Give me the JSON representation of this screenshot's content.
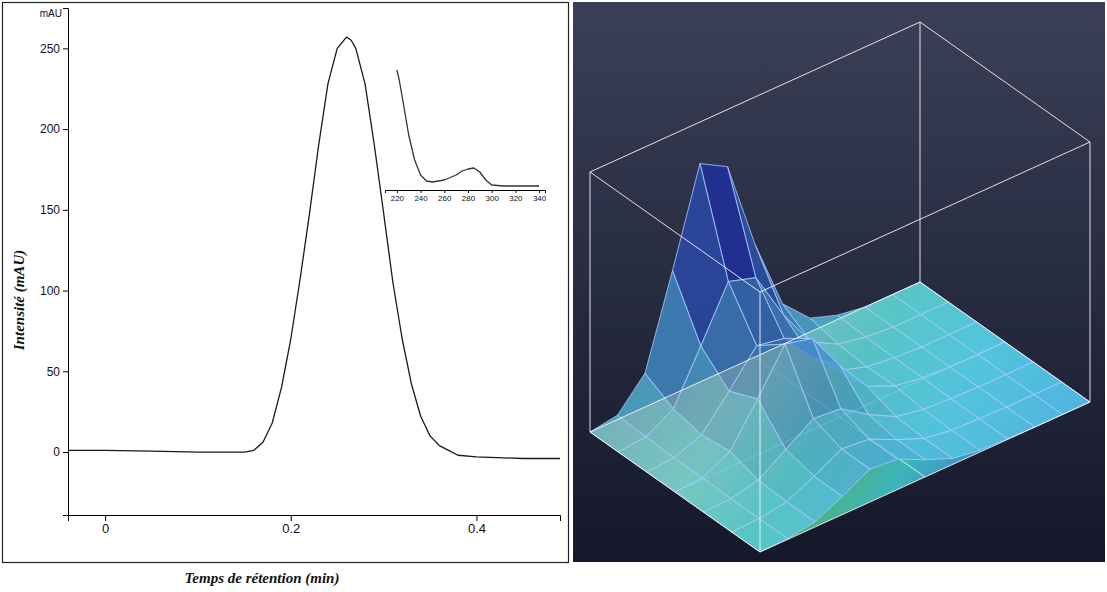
{
  "chart_data": [
    {
      "type": "line",
      "x_label": "Temps de rétention (min)",
      "y_label": "Intensité (mAU)",
      "annotations": [
        "mAU"
      ],
      "x": [
        -0.04,
        0,
        0.05,
        0.1,
        0.15,
        0.16,
        0.17,
        0.18,
        0.19,
        0.2,
        0.21,
        0.22,
        0.23,
        0.24,
        0.25,
        0.26,
        0.265,
        0.27,
        0.28,
        0.29,
        0.3,
        0.31,
        0.32,
        0.33,
        0.34,
        0.35,
        0.36,
        0.37,
        0.38,
        0.4,
        0.45,
        0.49
      ],
      "values": [
        1,
        1,
        0.5,
        0,
        0,
        1,
        6,
        18,
        40,
        70,
        107,
        147,
        190,
        228,
        250,
        257,
        255,
        250,
        228,
        190,
        148,
        105,
        70,
        42,
        22,
        10,
        4,
        1,
        -2,
        -3,
        -4,
        -4
      ],
      "color": "#1a1a1a",
      "xlim": [
        -0.04,
        0.49
      ],
      "ylim": [
        -39,
        275
      ],
      "xticks": [
        0,
        0.2,
        0.4
      ],
      "yticks": [
        0,
        50,
        100,
        150,
        200,
        250
      ]
    },
    {
      "type": "line",
      "x": [
        220,
        222,
        225,
        230,
        235,
        240,
        245,
        250,
        260,
        270,
        275,
        280,
        285,
        290,
        295,
        300,
        310,
        320,
        340
      ],
      "values": [
        120,
        110,
        90,
        55,
        30,
        15,
        9,
        8,
        10,
        15,
        19,
        21,
        22,
        18,
        10,
        5,
        4,
        4,
        4
      ],
      "color": "#333333",
      "xlim": [
        210,
        345
      ],
      "ylim": [
        0,
        125
      ],
      "xticks": [
        220,
        240,
        260,
        280,
        300,
        320,
        340
      ],
      "tick_labels": "x"
    },
    {
      "type": "surface",
      "x": [
        0.15,
        0.175,
        0.2,
        0.225,
        0.25,
        0.275,
        0.3,
        0.325,
        0.35,
        0.375,
        0.4,
        0.425,
        0.45
      ],
      "y": [
        220,
        240,
        260,
        280,
        300,
        320,
        340
      ],
      "z": [
        [
          0,
          5,
          39,
          143,
          252,
          234,
          130,
          47,
          16,
          5,
          0,
          0,
          0
        ],
        [
          0,
          3,
          21,
          79,
          139,
          129,
          72,
          26,
          9,
          3,
          0,
          0,
          0
        ],
        [
          0,
          2,
          14,
          50,
          88,
          82,
          46,
          16,
          6,
          2,
          0,
          0,
          0
        ],
        [
          0,
          2,
          18,
          64,
          113,
          105,
          59,
          21,
          7,
          2,
          0,
          0,
          0
        ],
        [
          0,
          1,
          8,
          29,
          50,
          47,
          26,
          9,
          3,
          1,
          0,
          0,
          0
        ],
        [
          0,
          1,
          6,
          21,
          38,
          35,
          20,
          7,
          2,
          1,
          0,
          0,
          0
        ],
        [
          0,
          1,
          6,
          21,
          38,
          35,
          20,
          7,
          2,
          1,
          0,
          0,
          0
        ]
      ],
      "xlim": [
        0.15,
        0.45
      ],
      "ylim": [
        220,
        340
      ],
      "zlim": [
        0,
        300
      ],
      "tick_labels": false
    }
  ]
}
